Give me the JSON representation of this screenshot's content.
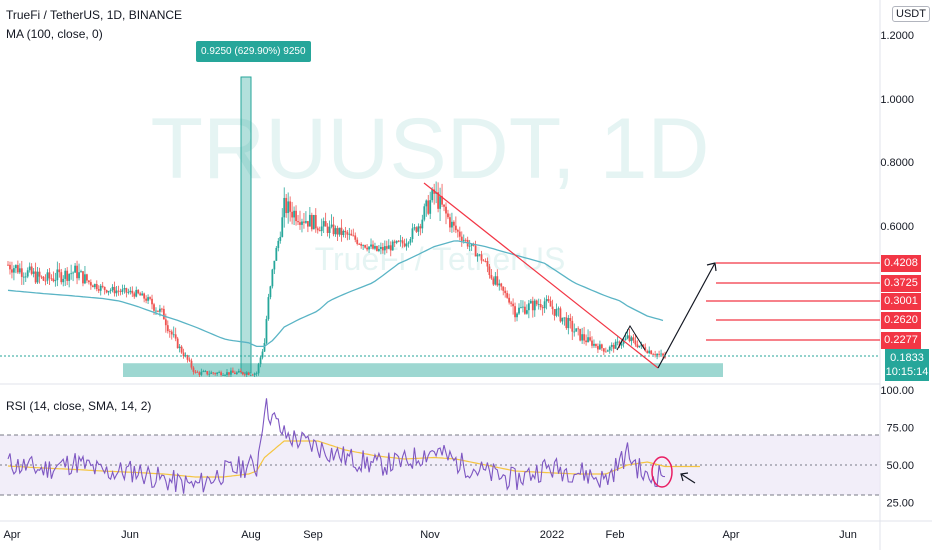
{
  "header": {
    "symbol_line": "TrueFi / TetherUS, 1D, BINANCE",
    "ma_label": "MA (100, close, 0)",
    "rsi_label": "RSI (14, close, SMA, 14, 2)",
    "currency_badge": "USDT"
  },
  "watermark": {
    "main": "TRUUSDT, 1D",
    "sub": "TrueFi / TetherUS"
  },
  "measure_label": "0.9250 (629.90%) 9250",
  "price_axis": {
    "ticks": [
      "1.2000",
      "1.0000",
      "0.8000",
      "0.6000"
    ],
    "target_levels": [
      "0.4208",
      "0.3725",
      "0.3001",
      "0.2620",
      "0.2277"
    ],
    "current_price": "0.1833",
    "countdown": "10:15:14"
  },
  "rsi_axis": {
    "ticks": [
      "100.00",
      "75.00",
      "50.00",
      "25.00"
    ]
  },
  "time_axis": {
    "ticks": [
      "Apr",
      "Jun",
      "Aug",
      "Sep",
      "Nov",
      "2022",
      "Feb",
      "Apr",
      "Jun"
    ]
  },
  "colors": {
    "up": "#26a69a",
    "down": "#ef5350",
    "ma": "#5ab4c5",
    "rsi": "#7e57c2",
    "rsi_ma": "#f5c542",
    "target": "#f23645",
    "rsi_band": "#ede7f6"
  },
  "chart_data": {
    "type": "candlestick",
    "price_series": "TRUUSDT daily close (approx.)",
    "x": [
      "2021-03-20",
      "2021-04-01",
      "2021-04-15",
      "2021-05-01",
      "2021-05-15",
      "2021-06-01",
      "2021-06-15",
      "2021-07-01",
      "2021-07-15",
      "2021-07-28",
      "2021-08-01",
      "2021-08-05",
      "2021-08-15",
      "2021-09-01",
      "2021-09-15",
      "2021-10-01",
      "2021-10-15",
      "2021-10-30",
      "2021-11-10",
      "2021-11-25",
      "2021-12-10",
      "2021-12-25",
      "2022-01-10",
      "2022-01-25",
      "2022-02-05",
      "2022-02-15",
      "2022-02-24"
    ],
    "close": [
      0.43,
      0.41,
      0.38,
      0.4,
      0.35,
      0.33,
      0.27,
      0.14,
      0.14,
      0.14,
      0.14,
      0.22,
      0.66,
      0.6,
      0.56,
      0.48,
      0.52,
      0.7,
      0.58,
      0.42,
      0.28,
      0.3,
      0.24,
      0.2,
      0.23,
      0.2,
      0.18
    ],
    "ma100": [
      0.35,
      0.34,
      0.33,
      0.32,
      0.31,
      0.29,
      0.27,
      0.25,
      0.23,
      0.22,
      0.21,
      0.21,
      0.25,
      0.28,
      0.33,
      0.38,
      0.43,
      0.5,
      0.53,
      0.5,
      0.46,
      0.42,
      0.37,
      0.32,
      0.29,
      0.27,
      0.26
    ],
    "rsi": [
      55,
      50,
      47,
      52,
      45,
      46,
      40,
      36,
      45,
      50,
      48,
      90,
      70,
      62,
      55,
      50,
      52,
      60,
      52,
      45,
      40,
      48,
      46,
      40,
      58,
      40,
      46
    ],
    "rsi_ma": [
      50,
      49,
      48,
      47,
      46,
      45,
      44,
      42,
      42,
      44,
      46,
      55,
      66,
      66,
      60,
      56,
      54,
      55,
      54,
      50,
      46,
      45,
      44,
      44,
      50,
      52,
      49
    ],
    "support_zone": [
      0.13,
      0.165
    ],
    "target_levels": [
      0.4208,
      0.3725,
      0.3001,
      0.262,
      0.2277
    ],
    "current_price": 0.1833,
    "gain_label": "0.9250 (629.90%) 9250",
    "ylim": [
      0.12,
      1.25
    ],
    "rsi_levels": [
      70,
      50,
      30
    ],
    "rsi_ylim": [
      0,
      100
    ]
  }
}
